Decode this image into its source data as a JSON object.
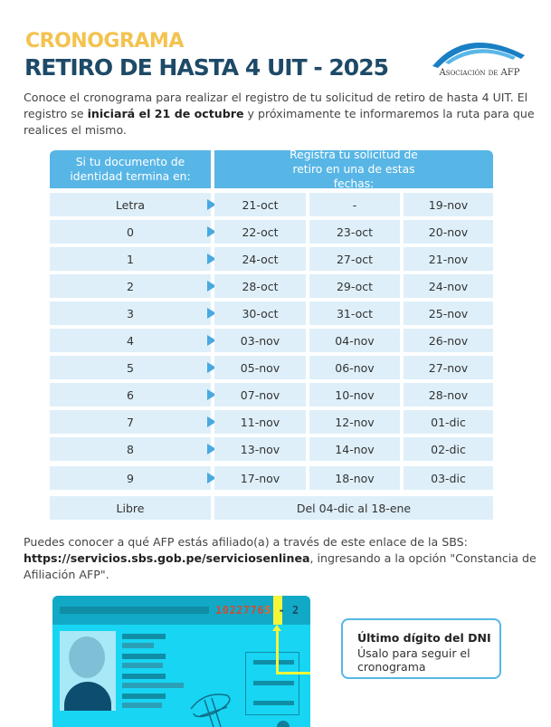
{
  "header": {
    "title_line1": "CRONOGRAMA",
    "title_line2": "RETIRO DE HASTA 4 UIT - 2025",
    "logo_text": "Asociación de AFP"
  },
  "intro": {
    "part1": "Conoce el cronograma para realizar el registro de tu solicitud de retiro de hasta 4 UIT. El registro se ",
    "bold": "iniciará el 21 de octubre",
    "part2": " y próximamente te informaremos la ruta para que realices el mismo."
  },
  "table": {
    "col1_header": "Si tu documento de identidad termina en:",
    "col2_header": "Registra tu solicitud de retiro en una de estas fechas:",
    "rows": [
      {
        "key": "Letra",
        "dates": [
          "21-oct",
          "-",
          "19-nov"
        ]
      },
      {
        "key": "0",
        "dates": [
          "22-oct",
          "23-oct",
          "20-nov"
        ]
      },
      {
        "key": "1",
        "dates": [
          "24-oct",
          "27-oct",
          "21-nov"
        ]
      },
      {
        "key": "2",
        "dates": [
          "28-oct",
          "29-oct",
          "24-nov"
        ]
      },
      {
        "key": "3",
        "dates": [
          "30-oct",
          "31-oct",
          "25-nov"
        ]
      },
      {
        "key": "4",
        "dates": [
          "03-nov",
          "04-nov",
          "26-nov"
        ]
      },
      {
        "key": "5",
        "dates": [
          "05-nov",
          "06-nov",
          "27-nov"
        ]
      },
      {
        "key": "6",
        "dates": [
          "07-nov",
          "10-nov",
          "28-nov"
        ]
      },
      {
        "key": "7",
        "dates": [
          "11-nov",
          "12-nov",
          "01-dic"
        ]
      },
      {
        "key": "8",
        "dates": [
          "13-nov",
          "14-nov",
          "02-dic"
        ]
      },
      {
        "key": "9",
        "dates": [
          "17-nov",
          "18-nov",
          "03-dic"
        ]
      }
    ],
    "last_row": {
      "key": "Libre",
      "range": "Del 04-dic al 18-ene"
    }
  },
  "footer": {
    "part1": "Puedes conocer a qué AFP estás afiliado(a) a través de este enlace de la SBS: ",
    "link": "https://servicios.sbs.gob.pe/serviciosenlinea",
    "part2": ", ingresando a la opción \"Constancia de Afiliación AFP\"."
  },
  "card": {
    "dni_number": "1022776",
    "dni_last_digit": "5",
    "dni_check": "- 2"
  },
  "callout": {
    "title": "Último dígito del DNI",
    "text": "Úsalo para seguir el cronograma"
  },
  "colors": {
    "title_yellow": "#f3c34f",
    "title_navy": "#1d4a67",
    "table_header": "#58b6e6",
    "table_cell": "#deeff9",
    "card": "#17d5f3",
    "highlight": "#f5f53a"
  }
}
